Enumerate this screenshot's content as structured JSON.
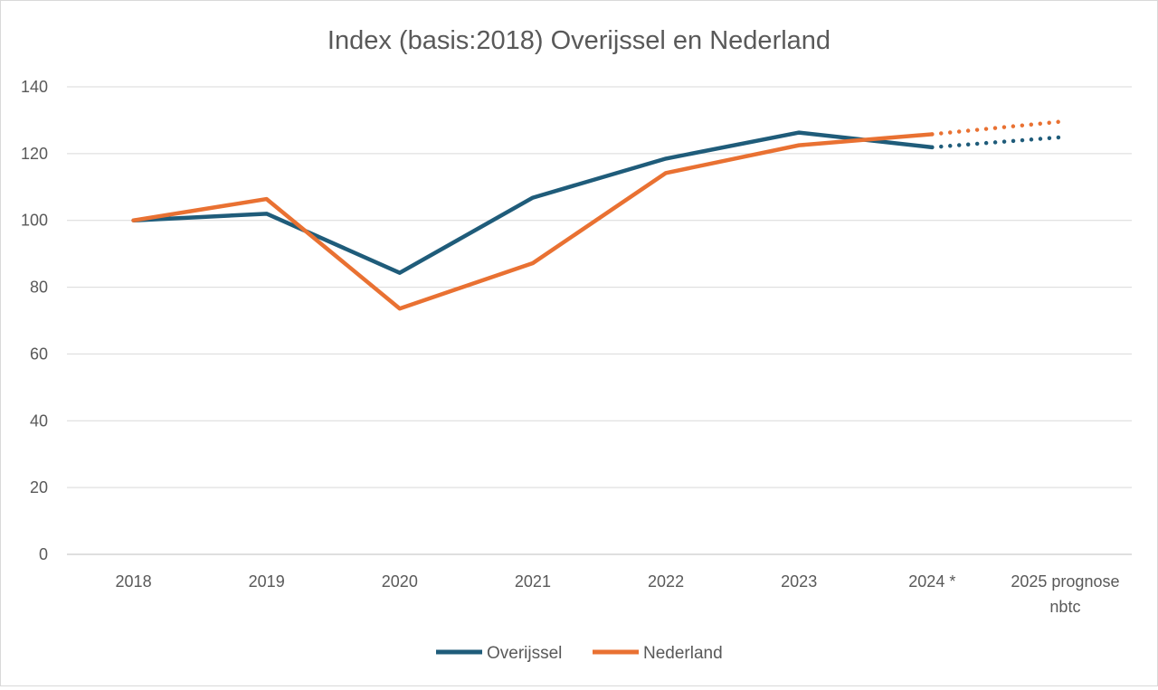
{
  "chart_data": {
    "type": "line",
    "title": "Index (basis:2018) Overijssel en Nederland",
    "categories": [
      "2018",
      "2019",
      "2020",
      "2021",
      "2022",
      "2023",
      "2024 *",
      "2025 prognose nbtc"
    ],
    "category_lines": [
      [
        "2018"
      ],
      [
        "2019"
      ],
      [
        "2020"
      ],
      [
        "2021"
      ],
      [
        "2022"
      ],
      [
        "2023"
      ],
      [
        "2024 *"
      ],
      [
        "2025 prognose",
        "nbtc"
      ]
    ],
    "ylim": [
      0,
      140
    ],
    "yticks": [
      "0",
      "20",
      "40",
      "60",
      "80",
      "100",
      "120",
      "140"
    ],
    "grid": true,
    "legend_position": "bottom",
    "series": [
      {
        "name": "Overijssel",
        "color": "#1f5c7a",
        "values": [
          100,
          102,
          84.3,
          106.8,
          118.5,
          126.3,
          121.9,
          125
        ],
        "dotted_from_index": 6
      },
      {
        "name": "Nederland",
        "color": "#e97132",
        "values": [
          100,
          106.4,
          73.6,
          87.2,
          114.2,
          122.5,
          125.8,
          129.7
        ],
        "dotted_from_index": 6
      }
    ]
  }
}
